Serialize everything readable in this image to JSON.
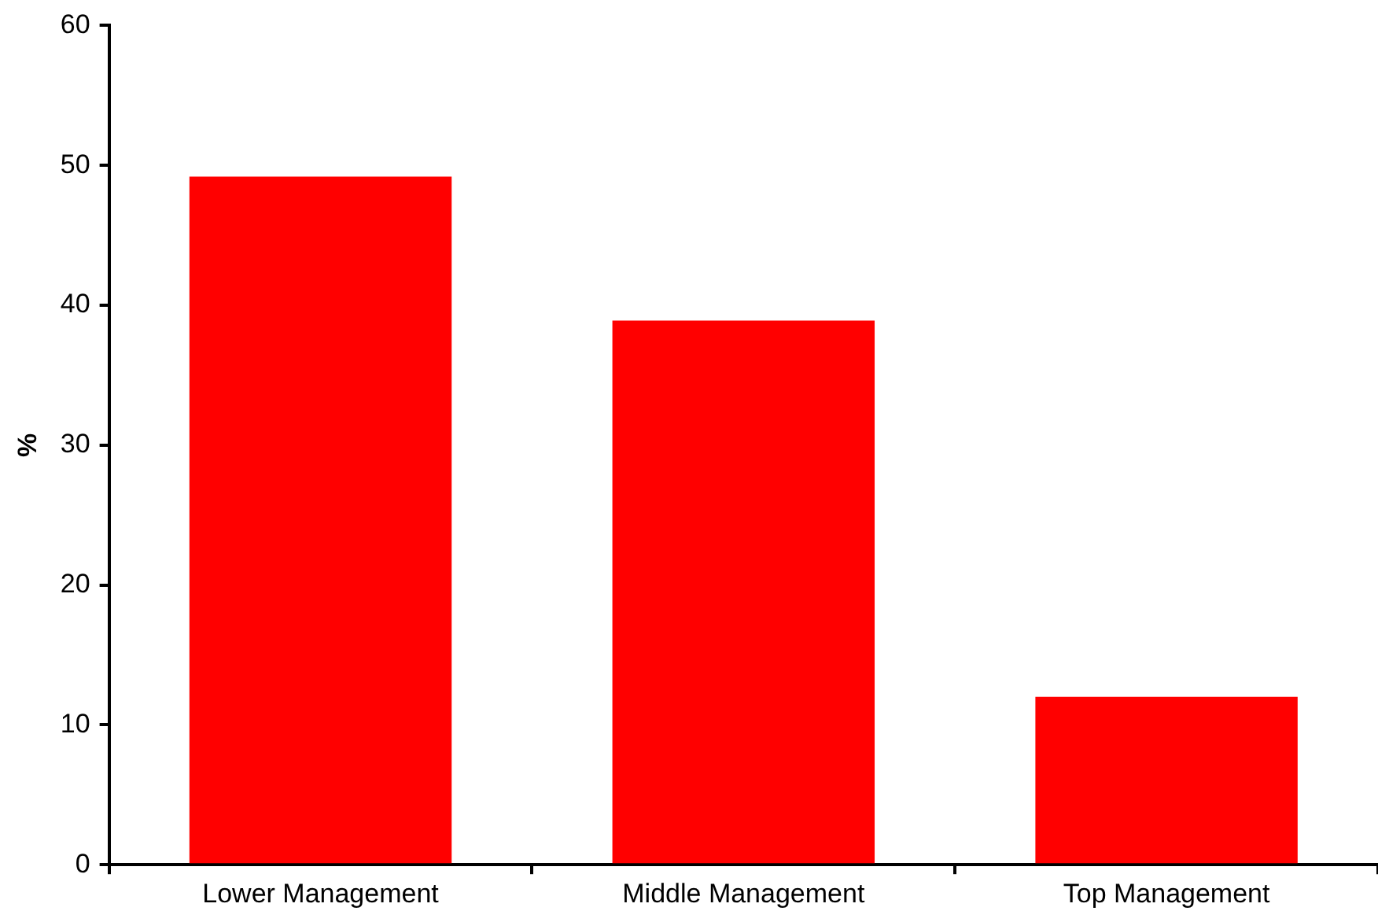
{
  "chart_data": {
    "type": "bar",
    "ylabel": "%",
    "categories": [
      "Lower Management",
      "Middle Management",
      "Top Management"
    ],
    "values": [
      49.2,
      38.9,
      12.0
    ],
    "color": "#ff0000",
    "ylim": [
      0,
      60
    ],
    "yticks": [
      0,
      10,
      20,
      30,
      40,
      50,
      60
    ],
    "grid": false,
    "legend": false
  }
}
